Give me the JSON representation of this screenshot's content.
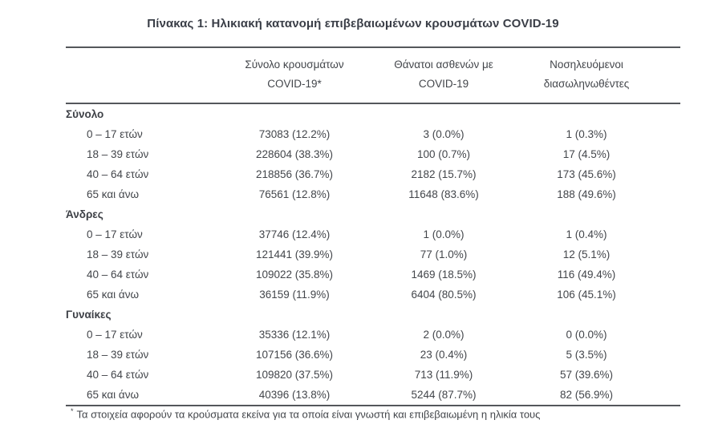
{
  "title": "Πίνακας 1: Ηλικιακή κατανομή επιβεβαιωμένων κρουσμάτων COVID-19",
  "table": {
    "columns": [
      {
        "line1": "Σύνολο κρουσμάτων",
        "line2": "COVID-19*"
      },
      {
        "line1": "Θάνατοι ασθενών με",
        "line2": "COVID-19"
      },
      {
        "line1": "Νοσηλευόμενοι",
        "line2": "διασωληνωθέντες"
      }
    ],
    "sections": [
      {
        "label": "Σύνολο",
        "rows": [
          {
            "age": "0 – 17 ετών",
            "cases": "73083 (12.2%)",
            "deaths": "3 (0.0%)",
            "intubated": "1 (0.3%)"
          },
          {
            "age": "18 – 39 ετών",
            "cases": "228604 (38.3%)",
            "deaths": "100 (0.7%)",
            "intubated": "17 (4.5%)"
          },
          {
            "age": "40 – 64 ετών",
            "cases": "218856 (36.7%)",
            "deaths": "2182 (15.7%)",
            "intubated": "173 (45.6%)"
          },
          {
            "age": "65 και άνω",
            "cases": "76561 (12.8%)",
            "deaths": "11648 (83.6%)",
            "intubated": "188 (49.6%)"
          }
        ]
      },
      {
        "label": "Άνδρες",
        "rows": [
          {
            "age": "0 – 17 ετών",
            "cases": "37746 (12.4%)",
            "deaths": "1 (0.0%)",
            "intubated": "1 (0.4%)"
          },
          {
            "age": "18 – 39 ετών",
            "cases": "121441 (39.9%)",
            "deaths": "77 (1.0%)",
            "intubated": "12 (5.1%)"
          },
          {
            "age": "40 – 64 ετών",
            "cases": "109022 (35.8%)",
            "deaths": "1469 (18.5%)",
            "intubated": "116 (49.4%)"
          },
          {
            "age": "65 και άνω",
            "cases": "36159 (11.9%)",
            "deaths": "6404 (80.5%)",
            "intubated": "106 (45.1%)"
          }
        ]
      },
      {
        "label": "Γυναίκες",
        "rows": [
          {
            "age": "0 – 17 ετών",
            "cases": "35336 (12.1%)",
            "deaths": "2 (0.0%)",
            "intubated": "0 (0.0%)"
          },
          {
            "age": "18 – 39 ετών",
            "cases": "107156 (36.6%)",
            "deaths": "23 (0.4%)",
            "intubated": "5 (3.5%)"
          },
          {
            "age": "40 – 64 ετών",
            "cases": "109820 (37.5%)",
            "deaths": "713 (11.9%)",
            "intubated": "57 (39.6%)"
          },
          {
            "age": "65 και άνω",
            "cases": "40396 (13.8%)",
            "deaths": "5244 (87.7%)",
            "intubated": "82 (56.9%)"
          }
        ]
      }
    ],
    "footnote_marker": "*",
    "footnote_text": "Τα στοιχεία αφορούν τα κρούσματα εκείνα για τα οποία είναι γνωστή και επιβεβαιωμένη η ηλικία τους"
  },
  "colors": {
    "text": "#43464b",
    "title": "#3a3e47",
    "rule": "#54575b",
    "background": "#ffffff"
  }
}
